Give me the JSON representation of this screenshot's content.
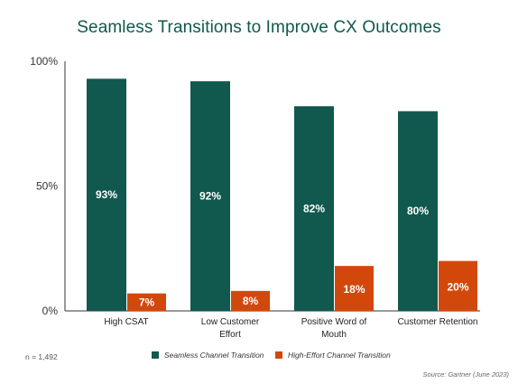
{
  "colors": {
    "seamless": "#11584f",
    "high_effort": "#d2480b",
    "axis": "#333333"
  },
  "footer": {
    "n": "n = 1,492",
    "source": "Source: Gartner (June 2023)"
  },
  "chart_data": {
    "type": "bar",
    "title": "Seamless Transitions to Improve CX Outcomes",
    "xlabel": "",
    "ylabel": "",
    "ylim": [
      0,
      100
    ],
    "y_ticks": [
      {
        "value": 0,
        "label": "0%"
      },
      {
        "value": 50,
        "label": "50%"
      },
      {
        "value": 100,
        "label": "100%"
      }
    ],
    "grid": false,
    "legend_position": "bottom",
    "categories": [
      [
        "High CSAT"
      ],
      [
        "Low Customer",
        "Effort"
      ],
      [
        "Positive Word of",
        "Mouth"
      ],
      [
        "Customer Retention"
      ]
    ],
    "series": [
      {
        "name": "Seamless Channel Transition",
        "values": [
          93,
          92,
          82,
          80
        ],
        "labels": [
          "93%",
          "92%",
          "82%",
          "80%"
        ]
      },
      {
        "name": "High-Effort Channel Transition",
        "values": [
          7,
          8,
          18,
          20
        ],
        "labels": [
          "7%",
          "8%",
          "18%",
          "20%"
        ]
      }
    ]
  }
}
